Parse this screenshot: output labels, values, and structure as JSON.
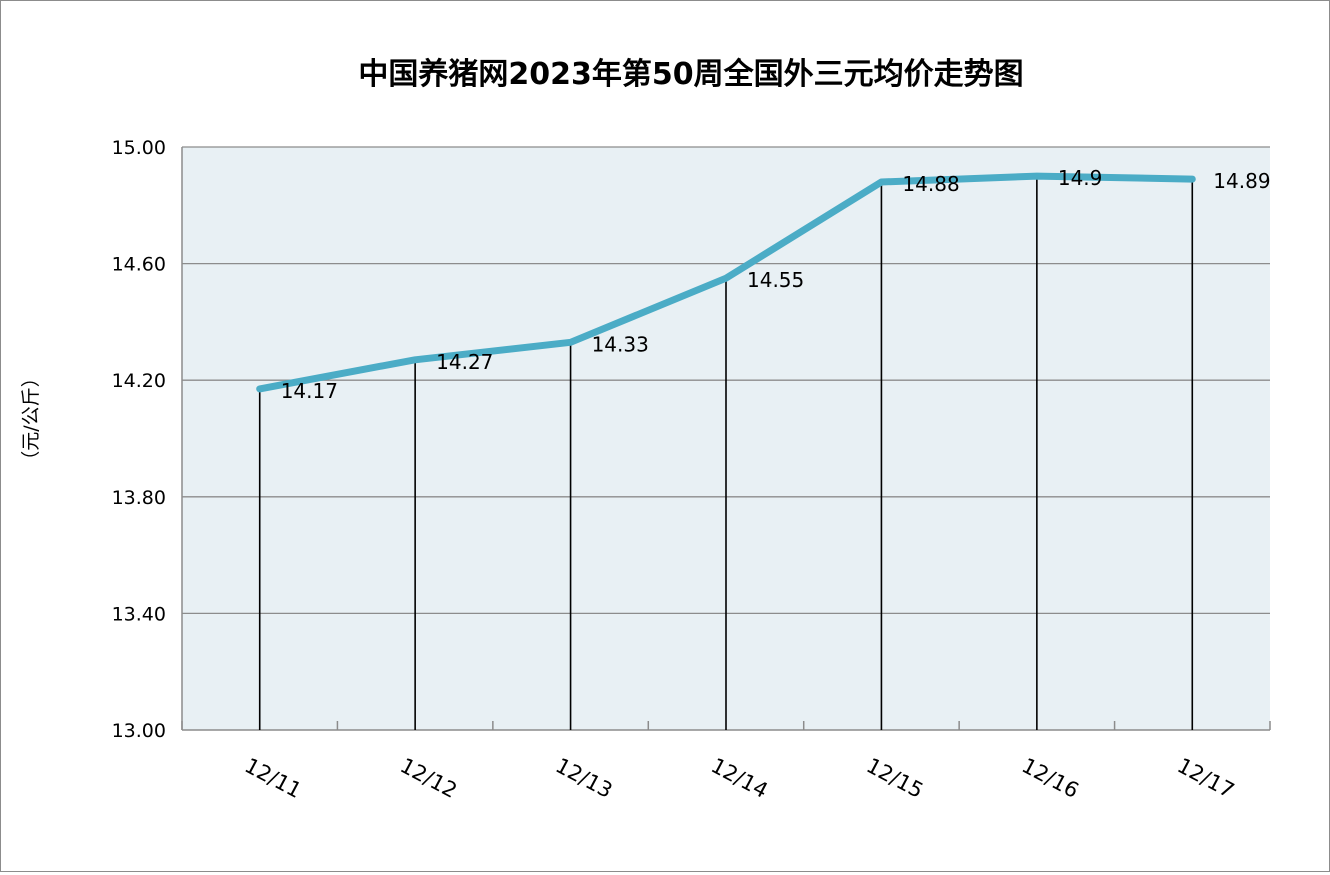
{
  "chart_data": {
    "type": "line",
    "title": "中国养猪网2023年第50周全国外三元均价走势图",
    "ylabel": "（元/公斤）",
    "xlabel": "",
    "categories": [
      "12/11",
      "12/12",
      "12/13",
      "12/14",
      "12/15",
      "12/16",
      "12/17"
    ],
    "series": [
      {
        "values": [
          14.17,
          14.27,
          14.33,
          14.55,
          14.88,
          14.9,
          14.89
        ],
        "data_labels": [
          "14.17",
          "14.27",
          "14.33",
          "14.55",
          "14.88",
          "14.9",
          "14.89"
        ],
        "color": "#4bacc6"
      }
    ],
    "ylim": [
      13.0,
      15.0
    ],
    "yticks": [
      13.0,
      13.4,
      13.8,
      14.2,
      14.6,
      15.0
    ],
    "ytick_labels": [
      "13.00",
      "13.40",
      "13.80",
      "14.20",
      "14.60",
      "15.00"
    ],
    "drop_lines": true,
    "grid": "horizontal",
    "legend": "none",
    "plot_background": "#e8f0f4",
    "gridline_color": "#8c8c8c"
  }
}
